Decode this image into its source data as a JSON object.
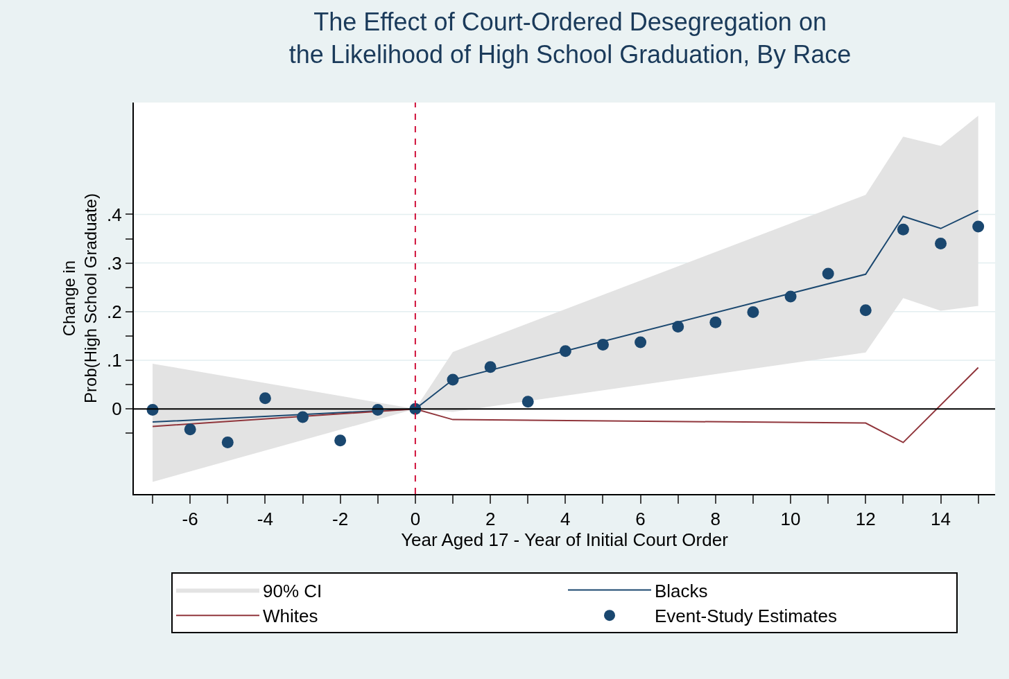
{
  "chart_data": {
    "type": "line",
    "title": "The Effect of Court-Ordered Desegregation on\nthe Likelihood of High School Graduation, By Race",
    "xlabel": "Year Aged 17 - Year of Initial Court Order",
    "ylabel": "Change in\nProb(High School Graduate)",
    "series": [
      {
        "name": "90% CI",
        "type": "area",
        "color": "#e3e3e3",
        "x": [
          -7,
          0,
          1,
          12,
          13,
          14,
          15
        ],
        "values": [
          null,
          null,
          null,
          null,
          null,
          null,
          null
        ],
        "lower": [
          -0.15,
          0,
          -0.006,
          0.116,
          0.228,
          0.202,
          0.212
        ],
        "upper": [
          0.093,
          0,
          0.117,
          0.44,
          0.56,
          0.541,
          0.603
        ]
      },
      {
        "name": "Blacks",
        "color": "#1a476f",
        "x": [
          -7,
          0,
          1,
          12,
          13,
          14,
          15
        ],
        "values": [
          -0.027,
          0,
          0.06,
          0.277,
          0.396,
          0.371,
          0.408
        ]
      },
      {
        "name": "Whites",
        "color": "#90353b",
        "x": [
          -7,
          0,
          1,
          12,
          13,
          15
        ],
        "values": [
          -0.036,
          0,
          -0.022,
          -0.029,
          -0.069,
          0.085
        ]
      },
      {
        "name": "Event-Study Estimates",
        "type": "scatter",
        "marker": "circle",
        "color": "#1a476f",
        "x": [
          -7,
          -6,
          -5,
          -4,
          -3,
          -2,
          -1,
          0,
          1,
          2,
          3,
          4,
          5,
          6,
          7,
          8,
          9,
          10,
          11,
          12,
          13,
          14,
          15
        ],
        "values": [
          -0.002,
          -0.042,
          -0.069,
          0.022,
          -0.017,
          -0.065,
          -0.002,
          0,
          0.06,
          0.086,
          0.015,
          0.119,
          0.132,
          0.137,
          0.169,
          0.178,
          0.199,
          0.231,
          0.278,
          0.203,
          0.369,
          0.34,
          0.375
        ]
      }
    ],
    "xlim": [
      -7.5,
      15.45
    ],
    "ylim": [
      -0.175,
      0.63
    ],
    "xticks": [
      {
        "value": -7,
        "label": null
      },
      -6,
      {
        "value": -5,
        "label": null
      },
      -4,
      {
        "value": -3,
        "label": null
      },
      -2,
      {
        "value": -1,
        "label": null
      },
      0,
      {
        "value": 1,
        "label": null
      },
      2,
      {
        "value": 3,
        "label": null
      },
      4,
      {
        "value": 5,
        "label": null
      },
      6,
      {
        "value": 7,
        "label": null
      },
      8,
      {
        "value": 9,
        "label": null
      },
      10,
      {
        "value": 11,
        "label": null
      },
      12,
      {
        "value": 13,
        "label": null
      },
      14,
      {
        "value": 15,
        "label": null
      }
    ],
    "yticks": [
      {
        "value": -0.05,
        "label": null
      },
      0,
      {
        "value": 0.05,
        "label": null
      },
      {
        "value": 0.1,
        "label": ".1"
      },
      {
        "value": 0.15,
        "label": null
      },
      {
        "value": 0.2,
        "label": ".2"
      },
      {
        "value": 0.25,
        "label": null
      },
      {
        "value": 0.3,
        "label": ".3"
      },
      {
        "value": 0.35,
        "label": null
      },
      {
        "value": 0.4,
        "label": ".4"
      }
    ],
    "grid": "y",
    "legend": "bottom",
    "ref_lines": [
      {
        "axis": "y",
        "value": 0,
        "label": null,
        "color": "#000000",
        "line_style": "solid"
      },
      {
        "axis": "x",
        "value": 0,
        "label": null,
        "color": "#d0103a",
        "line_style": "dashed"
      }
    ]
  }
}
